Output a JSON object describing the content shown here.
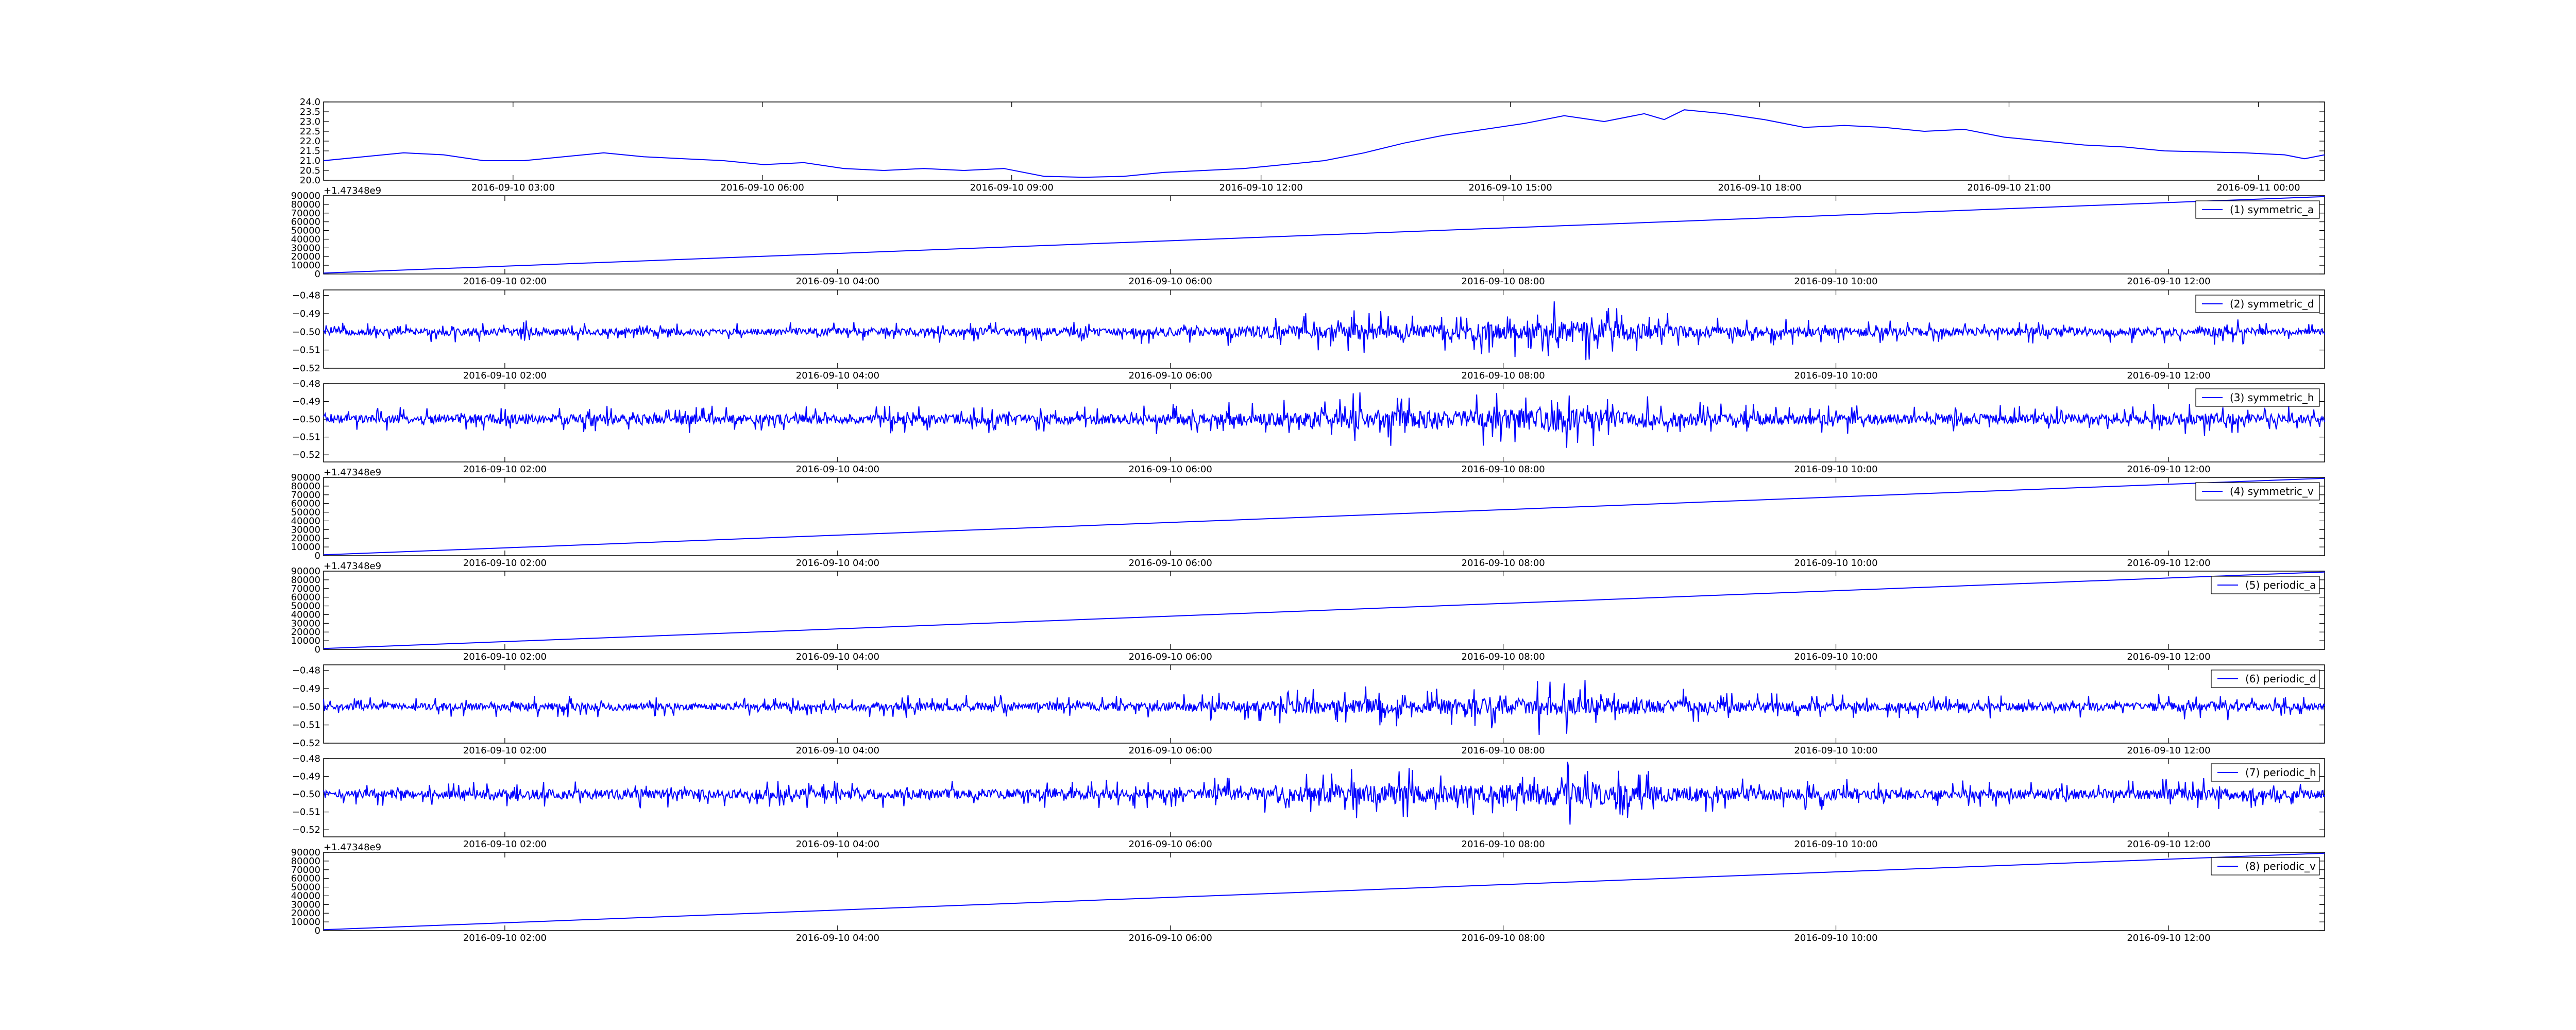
{
  "figure": {
    "background": "#ffffff",
    "line_color": "#0000ff"
  },
  "chart_data": [
    {
      "type": "line",
      "title": "",
      "xlabel": "",
      "ylabel": "",
      "x_ticks": [
        "2016-09-10 03:00",
        "2016-09-10 06:00",
        "2016-09-10 09:00",
        "2016-09-10 12:00",
        "2016-09-10 15:00",
        "2016-09-10 18:00",
        "2016-09-10 21:00",
        "2016-09-11 00:00"
      ],
      "x_tick_fracs": [
        0.0947,
        0.2193,
        0.3439,
        0.4685,
        0.5931,
        0.7177,
        0.8423,
        0.9669
      ],
      "y_ticks": [
        "20.0",
        "20.5",
        "21.0",
        "21.5",
        "22.0",
        "22.5",
        "23.0",
        "23.5",
        "24.0"
      ],
      "ylim": [
        20.0,
        24.0
      ],
      "offset_text": "",
      "legend": "",
      "series": [
        {
          "x_frac": [
            0,
            0.02,
            0.04,
            0.06,
            0.08,
            0.1,
            0.12,
            0.14,
            0.16,
            0.18,
            0.2,
            0.22,
            0.24,
            0.26,
            0.28,
            0.3,
            0.32,
            0.34,
            0.36,
            0.38,
            0.4,
            0.42,
            0.44,
            0.46,
            0.48,
            0.5,
            0.52,
            0.54,
            0.56,
            0.58,
            0.6,
            0.62,
            0.64,
            0.66,
            0.67,
            0.68,
            0.7,
            0.72,
            0.74,
            0.76,
            0.78,
            0.8,
            0.82,
            0.84,
            0.86,
            0.88,
            0.9,
            0.92,
            0.94,
            0.96,
            0.98,
            0.99,
            1.0
          ],
          "y": [
            21.0,
            21.2,
            21.4,
            21.3,
            21.0,
            21.0,
            21.2,
            21.4,
            21.2,
            21.1,
            21.0,
            20.8,
            20.9,
            20.6,
            20.5,
            20.6,
            20.5,
            20.6,
            20.2,
            20.15,
            20.2,
            20.4,
            20.5,
            20.6,
            20.8,
            21.0,
            21.4,
            21.9,
            22.3,
            22.6,
            22.9,
            23.3,
            23.0,
            23.4,
            23.1,
            23.6,
            23.4,
            23.1,
            22.7,
            22.8,
            22.7,
            22.5,
            22.6,
            22.2,
            22.0,
            21.8,
            21.7,
            21.5,
            21.45,
            21.4,
            21.3,
            21.1,
            21.3
          ]
        }
      ]
    },
    {
      "type": "line",
      "title": "",
      "xlabel": "",
      "ylabel": "",
      "x_ticks": [
        "2016-09-10 02:00",
        "2016-09-10 04:00",
        "2016-09-10 06:00",
        "2016-09-10 08:00",
        "2016-09-10 10:00",
        "2016-09-10 12:00"
      ],
      "x_tick_fracs": [
        0.0906,
        0.2569,
        0.4232,
        0.5895,
        0.7558,
        0.9221
      ],
      "y_ticks": [
        "0",
        "10000",
        "20000",
        "30000",
        "40000",
        "50000",
        "60000",
        "70000",
        "80000",
        "90000"
      ],
      "ylim": [
        0,
        90000
      ],
      "offset_text": "+1.47348e9",
      "legend": "(1) symmetric_a",
      "series": [
        {
          "name": "(1) symmetric_a",
          "x_frac": [
            0,
            1
          ],
          "y": [
            1000,
            89000
          ]
        }
      ]
    },
    {
      "type": "line",
      "title": "",
      "xlabel": "",
      "ylabel": "",
      "x_ticks": [
        "2016-09-10 02:00",
        "2016-09-10 04:00",
        "2016-09-10 06:00",
        "2016-09-10 08:00",
        "2016-09-10 10:00",
        "2016-09-10 12:00"
      ],
      "x_tick_fracs": [
        0.0906,
        0.2569,
        0.4232,
        0.5895,
        0.7558,
        0.9221
      ],
      "y_ticks": [
        "−0.52",
        "−0.51",
        "−0.50",
        "−0.49",
        "−0.48"
      ],
      "ylim": [
        -0.52,
        -0.477
      ],
      "offset_text": "",
      "legend": "(2) symmetric_d",
      "series": [
        {
          "name": "(2) symmetric_d",
          "x_frac": [
            0,
            0.1,
            0.2,
            0.3,
            0.4,
            0.45,
            0.5,
            0.52,
            0.55,
            0.6,
            0.62,
            0.65,
            0.7,
            0.8,
            0.9,
            0.94,
            1.0
          ],
          "y": [
            -0.5,
            -0.5,
            -0.5,
            -0.5,
            -0.5,
            -0.5,
            -0.5,
            -0.5,
            -0.5,
            -0.5,
            -0.5,
            -0.5,
            -0.5,
            -0.5,
            -0.5,
            -0.5,
            -0.5
          ],
          "noise_envelope": [
            0.003,
            0.004,
            0.003,
            0.004,
            0.004,
            0.005,
            0.007,
            0.008,
            0.007,
            0.009,
            0.011,
            0.008,
            0.005,
            0.004,
            0.004,
            0.005,
            0.003
          ]
        }
      ]
    },
    {
      "type": "line",
      "title": "",
      "xlabel": "",
      "ylabel": "",
      "x_ticks": [
        "2016-09-10 02:00",
        "2016-09-10 04:00",
        "2016-09-10 06:00",
        "2016-09-10 08:00",
        "2016-09-10 10:00",
        "2016-09-10 12:00"
      ],
      "x_tick_fracs": [
        0.0906,
        0.2569,
        0.4232,
        0.5895,
        0.7558,
        0.9221
      ],
      "y_ticks": [
        "−0.52",
        "−0.51",
        "−0.50",
        "−0.49",
        "−0.48"
      ],
      "ylim": [
        -0.524,
        -0.48
      ],
      "offset_text": "",
      "legend": "(3) symmetric_h",
      "series": [
        {
          "name": "(3) symmetric_h",
          "x_frac": [
            0,
            0.1,
            0.2,
            0.3,
            0.4,
            0.45,
            0.5,
            0.52,
            0.55,
            0.6,
            0.62,
            0.65,
            0.7,
            0.8,
            0.9,
            0.94,
            1.0
          ],
          "y": [
            -0.5,
            -0.5,
            -0.5,
            -0.5,
            -0.5,
            -0.5,
            -0.5,
            -0.5,
            -0.5,
            -0.5,
            -0.5,
            -0.5,
            -0.5,
            -0.5,
            -0.5,
            -0.5,
            -0.5
          ],
          "noise_envelope": [
            0.004,
            0.005,
            0.005,
            0.005,
            0.005,
            0.006,
            0.008,
            0.01,
            0.009,
            0.01,
            0.012,
            0.009,
            0.006,
            0.005,
            0.005,
            0.006,
            0.004
          ]
        }
      ]
    },
    {
      "type": "line",
      "title": "",
      "xlabel": "",
      "ylabel": "",
      "x_ticks": [
        "2016-09-10 02:00",
        "2016-09-10 04:00",
        "2016-09-10 06:00",
        "2016-09-10 08:00",
        "2016-09-10 10:00",
        "2016-09-10 12:00"
      ],
      "x_tick_fracs": [
        0.0906,
        0.2569,
        0.4232,
        0.5895,
        0.7558,
        0.9221
      ],
      "y_ticks": [
        "0",
        "10000",
        "20000",
        "30000",
        "40000",
        "50000",
        "60000",
        "70000",
        "80000",
        "90000"
      ],
      "ylim": [
        0,
        90000
      ],
      "offset_text": "+1.47348e9",
      "legend": "(4) symmetric_v",
      "series": [
        {
          "name": "(4) symmetric_v",
          "x_frac": [
            0,
            1
          ],
          "y": [
            1000,
            89000
          ]
        }
      ]
    },
    {
      "type": "line",
      "title": "",
      "xlabel": "",
      "ylabel": "",
      "x_ticks": [
        "2016-09-10 02:00",
        "2016-09-10 04:00",
        "2016-09-10 06:00",
        "2016-09-10 08:00",
        "2016-09-10 10:00",
        "2016-09-10 12:00"
      ],
      "x_tick_fracs": [
        0.0906,
        0.2569,
        0.4232,
        0.5895,
        0.7558,
        0.9221
      ],
      "y_ticks": [
        "0",
        "10000",
        "20000",
        "30000",
        "40000",
        "50000",
        "60000",
        "70000",
        "80000",
        "90000"
      ],
      "ylim": [
        0,
        90000
      ],
      "offset_text": "+1.47348e9",
      "legend": "(5) periodic_a",
      "series": [
        {
          "name": "(5) periodic_a",
          "x_frac": [
            0,
            1
          ],
          "y": [
            1000,
            89000
          ]
        }
      ]
    },
    {
      "type": "line",
      "title": "",
      "xlabel": "",
      "ylabel": "",
      "x_ticks": [
        "2016-09-10 02:00",
        "2016-09-10 04:00",
        "2016-09-10 06:00",
        "2016-09-10 08:00",
        "2016-09-10 10:00",
        "2016-09-10 12:00"
      ],
      "x_tick_fracs": [
        0.0906,
        0.2569,
        0.4232,
        0.5895,
        0.7558,
        0.9221
      ],
      "y_ticks": [
        "−0.52",
        "−0.51",
        "−0.50",
        "−0.49",
        "−0.48"
      ],
      "ylim": [
        -0.52,
        -0.477
      ],
      "offset_text": "",
      "legend": "(6) periodic_d",
      "series": [
        {
          "name": "(6) periodic_d",
          "x_frac": [
            0,
            0.1,
            0.2,
            0.3,
            0.4,
            0.45,
            0.5,
            0.52,
            0.55,
            0.6,
            0.62,
            0.65,
            0.7,
            0.8,
            0.9,
            0.94,
            1.0
          ],
          "y": [
            -0.5,
            -0.5,
            -0.5,
            -0.5,
            -0.5,
            -0.5,
            -0.5,
            -0.5,
            -0.5,
            -0.5,
            -0.5,
            -0.5,
            -0.5,
            -0.5,
            -0.5,
            -0.5,
            -0.5
          ],
          "noise_envelope": [
            0.003,
            0.004,
            0.003,
            0.004,
            0.004,
            0.005,
            0.007,
            0.008,
            0.007,
            0.009,
            0.011,
            0.008,
            0.005,
            0.004,
            0.004,
            0.005,
            0.003
          ]
        }
      ]
    },
    {
      "type": "line",
      "title": "",
      "xlabel": "",
      "ylabel": "",
      "x_ticks": [
        "2016-09-10 02:00",
        "2016-09-10 04:00",
        "2016-09-10 06:00",
        "2016-09-10 08:00",
        "2016-09-10 10:00",
        "2016-09-10 12:00"
      ],
      "x_tick_fracs": [
        0.0906,
        0.2569,
        0.4232,
        0.5895,
        0.7558,
        0.9221
      ],
      "y_ticks": [
        "−0.52",
        "−0.51",
        "−0.50",
        "−0.49",
        "−0.48"
      ],
      "ylim": [
        -0.524,
        -0.48
      ],
      "offset_text": "",
      "legend": "(7) periodic_h",
      "series": [
        {
          "name": "(7) periodic_h",
          "x_frac": [
            0,
            0.1,
            0.2,
            0.3,
            0.4,
            0.45,
            0.5,
            0.52,
            0.55,
            0.6,
            0.62,
            0.65,
            0.7,
            0.8,
            0.9,
            0.94,
            1.0
          ],
          "y": [
            -0.5,
            -0.5,
            -0.5,
            -0.5,
            -0.5,
            -0.5,
            -0.5,
            -0.5,
            -0.5,
            -0.5,
            -0.5,
            -0.5,
            -0.5,
            -0.5,
            -0.5,
            -0.5,
            -0.5
          ],
          "noise_envelope": [
            0.004,
            0.005,
            0.005,
            0.005,
            0.005,
            0.006,
            0.008,
            0.01,
            0.009,
            0.01,
            0.012,
            0.009,
            0.006,
            0.005,
            0.005,
            0.006,
            0.004
          ]
        }
      ]
    },
    {
      "type": "line",
      "title": "",
      "xlabel": "",
      "ylabel": "",
      "x_ticks": [
        "2016-09-10 02:00",
        "2016-09-10 04:00",
        "2016-09-10 06:00",
        "2016-09-10 08:00",
        "2016-09-10 10:00",
        "2016-09-10 12:00"
      ],
      "x_tick_fracs": [
        0.0906,
        0.2569,
        0.4232,
        0.5895,
        0.7558,
        0.9221
      ],
      "y_ticks": [
        "0",
        "10000",
        "20000",
        "30000",
        "40000",
        "50000",
        "60000",
        "70000",
        "80000",
        "90000"
      ],
      "ylim": [
        0,
        90000
      ],
      "offset_text": "+1.47348e9",
      "legend": "(8) periodic_v",
      "series": [
        {
          "name": "(8) periodic_v",
          "x_frac": [
            0,
            1
          ],
          "y": [
            1000,
            89000
          ]
        }
      ]
    }
  ]
}
